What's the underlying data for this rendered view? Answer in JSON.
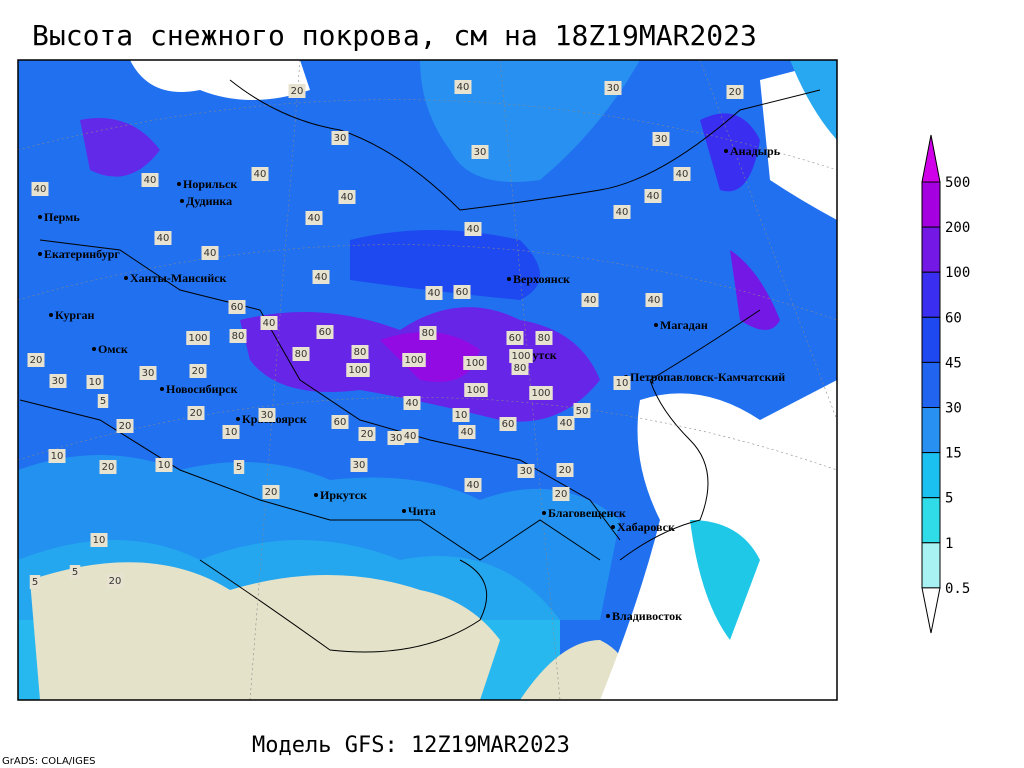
{
  "title": "Высота снежного покрова, см на 18Z19MAR2023",
  "footer": "Модель GFS: 12Z19MAR2023",
  "credit": "GrADS: COLA/IGES",
  "colorbar": {
    "levels": [
      500,
      200,
      100,
      60,
      45,
      30,
      15,
      5,
      1,
      0.5
    ],
    "colors": [
      "#d000e8",
      "#a400e0",
      "#7418e6",
      "#3a2ef0",
      "#1e48f0",
      "#2064f0",
      "#2890f0",
      "#1cc0f0",
      "#30dce8",
      "#a8f2f4",
      "#ffffff"
    ]
  },
  "cities": [
    "Норильск",
    "Дудинка",
    "Пермь",
    "Екатеринбург",
    "Ханты-Мансийск",
    "Курган",
    "Омск",
    "Новосибирск",
    "Красноярск",
    "Иркутск",
    "Чита",
    "Верхоянск",
    "Якутск",
    "Магадан",
    "Анадырь",
    "Петропавловск-Камчатский",
    "Благовещенск",
    "Хабаровск",
    "Владивосток"
  ],
  "contour_labels": [
    "40",
    "30",
    "20",
    "40",
    "30",
    "40",
    "40",
    "40",
    "40",
    "40",
    "40",
    "40",
    "30",
    "40",
    "40",
    "40",
    "30",
    "20",
    "40",
    "40",
    "40",
    "60",
    "40",
    "60",
    "80",
    "100",
    "80",
    "100",
    "100",
    "80",
    "60",
    "100",
    "100",
    "80",
    "60",
    "40",
    "40",
    "60",
    "80",
    "100",
    "20",
    "30",
    "20",
    "30",
    "10",
    "5",
    "10",
    "20",
    "10",
    "20",
    "20",
    "10",
    "5",
    "30",
    "20",
    "40",
    "10",
    "5",
    "10",
    "20",
    "40",
    "30",
    "60",
    "80",
    "100",
    "50",
    "40",
    "20",
    "10",
    "5",
    "20",
    "40",
    "60",
    "30",
    "30",
    "20"
  ]
}
